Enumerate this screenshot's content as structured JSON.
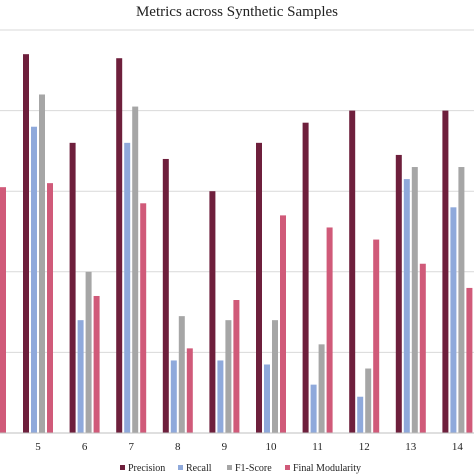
{
  "chart_data": {
    "type": "bar",
    "title": "Metrics across Synthetic Samples",
    "xlabel": "",
    "ylabel": "",
    "categories": [
      "5",
      "6",
      "7",
      "8",
      "9",
      "10",
      "11",
      "12",
      "13",
      "14"
    ],
    "partial_left_bar": {
      "series": "Final Modularity",
      "value": 0.61
    },
    "ylim": [
      0,
      1.0
    ],
    "y_gridlines": [
      0.2,
      0.4,
      0.6,
      0.8,
      1.0
    ],
    "grid": true,
    "legend_position": "bottom",
    "series": [
      {
        "name": "Precision",
        "color": "#6e1f3c",
        "values": [
          0.94,
          0.72,
          0.93,
          0.68,
          0.6,
          0.72,
          0.77,
          0.8,
          0.69,
          0.8
        ]
      },
      {
        "name": "Recall",
        "color": "#8fa9db",
        "values": [
          0.76,
          0.28,
          0.72,
          0.18,
          0.18,
          0.17,
          0.12,
          0.09,
          0.63,
          0.56
        ]
      },
      {
        "name": "F1-Score",
        "color": "#a6a6a6",
        "values": [
          0.84,
          0.4,
          0.81,
          0.29,
          0.28,
          0.28,
          0.22,
          0.16,
          0.66,
          0.66
        ]
      },
      {
        "name": "Final Modularity",
        "color": "#d05a79",
        "values": [
          0.62,
          0.34,
          0.57,
          0.21,
          0.33,
          0.54,
          0.51,
          0.48,
          0.42,
          0.36
        ]
      }
    ]
  }
}
